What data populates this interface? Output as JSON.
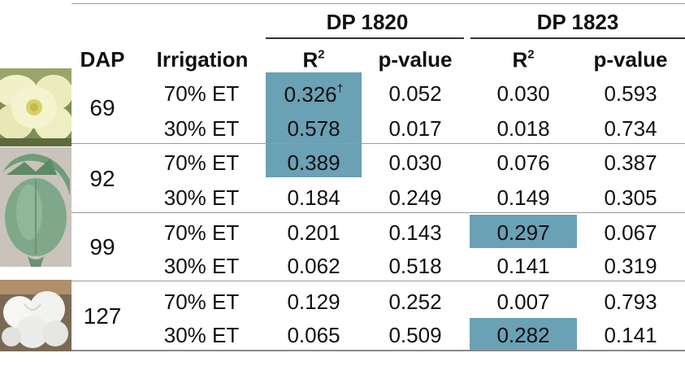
{
  "table": {
    "groups": [
      {
        "label": "DP 1820"
      },
      {
        "label": "DP 1823"
      }
    ],
    "headers": {
      "dap": "DAP",
      "irrigation": "Irrigation",
      "r2_base": "R",
      "r2_sup": "2",
      "pvalue": "p-value"
    },
    "rows": [
      {
        "dap": "69",
        "lines": [
          {
            "irr": "70% ET",
            "r2_1820": "0.326",
            "mark_1820": "†",
            "p_1820": "0.052",
            "r2_1823": "0.030",
            "p_1823": "0.593"
          },
          {
            "irr": "30% ET",
            "r2_1820": "0.578",
            "mark_1820": "",
            "p_1820": "0.017",
            "r2_1823": "0.018",
            "p_1823": "0.734"
          }
        ]
      },
      {
        "dap": "92",
        "lines": [
          {
            "irr": "70% ET",
            "r2_1820": "0.389",
            "mark_1820": "",
            "p_1820": "0.030",
            "r2_1823": "0.076",
            "p_1823": "0.387"
          },
          {
            "irr": "30% ET",
            "r2_1820": "0.184",
            "mark_1820": "",
            "p_1820": "0.249",
            "r2_1823": "0.149",
            "p_1823": "0.305"
          }
        ]
      },
      {
        "dap": "99",
        "lines": [
          {
            "irr": "70% ET",
            "r2_1820": "0.201",
            "mark_1820": "",
            "p_1820": "0.143",
            "r2_1823": "0.297",
            "p_1823": "0.067"
          },
          {
            "irr": "30% ET",
            "r2_1820": "0.062",
            "mark_1820": "",
            "p_1820": "0.518",
            "r2_1823": "0.141",
            "p_1823": "0.319"
          }
        ]
      },
      {
        "dap": "127",
        "lines": [
          {
            "irr": "70% ET",
            "r2_1820": "0.129",
            "mark_1820": "",
            "p_1820": "0.252",
            "r2_1823": "0.007",
            "p_1823": "0.793"
          },
          {
            "irr": "30% ET",
            "r2_1820": "0.065",
            "mark_1820": "",
            "p_1820": "0.509",
            "r2_1823": "0.282",
            "p_1823": "0.141"
          }
        ]
      }
    ],
    "highlight_color": "#6aa1b5",
    "highlighted_cells": [
      "69 70% ET DP 1820 R2",
      "69 30% ET DP 1820 R2",
      "92 70% ET DP 1820 R2",
      "99 70% ET DP 1823 R2",
      "127 30% ET DP 1823 R2"
    ]
  },
  "photos": [
    {
      "icon": "cotton-flower"
    },
    {
      "icon": "cotton-boll-green"
    },
    {
      "icon": "cotton-boll-open"
    }
  ]
}
